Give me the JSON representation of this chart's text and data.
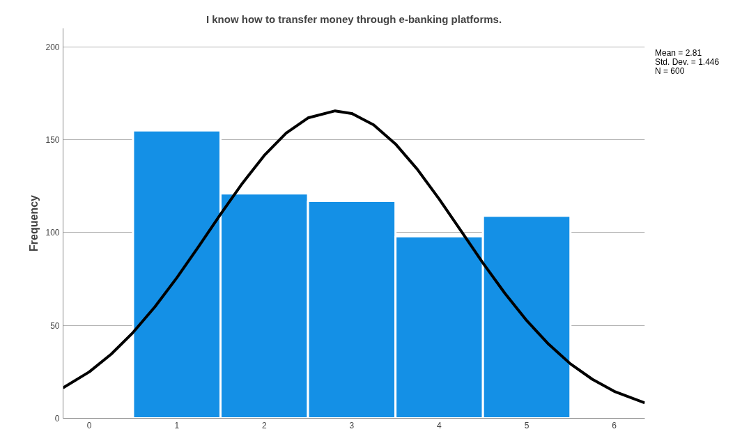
{
  "chart_data": {
    "type": "histogram",
    "title": "I know how to transfer money through e-banking platforms.",
    "ylabel": "Frequency",
    "bins": [
      0.5,
      1.5,
      2.5,
      3.5,
      4.5,
      5.5
    ],
    "values": [
      155,
      121,
      117,
      98,
      109
    ],
    "color": "#1490e6",
    "series": [
      {
        "type": "line",
        "color": "#000000",
        "x": [
          -0.3,
          0,
          0.25,
          0.5,
          0.75,
          1,
          1.25,
          1.5,
          1.75,
          2,
          2.25,
          2.5,
          2.81,
          3,
          3.25,
          3.5,
          3.75,
          4,
          4.25,
          4.5,
          4.75,
          5,
          5.25,
          5.5,
          5.75,
          6,
          6.35
        ],
        "values": [
          16.4,
          25.0,
          34.5,
          46.2,
          60.0,
          75.6,
          92.5,
          109.8,
          126.5,
          141.5,
          153.5,
          161.7,
          165.5,
          164.1,
          158.0,
          147.7,
          134.0,
          118.0,
          100.8,
          83.6,
          67.3,
          52.6,
          39.9,
          29.3,
          21.0,
          14.5,
          8.3
        ]
      }
    ],
    "xlim": [
      -0.3,
      6.35
    ],
    "xticks": [
      0,
      1,
      2,
      3,
      4,
      5,
      6
    ],
    "ylim": [
      0,
      210
    ],
    "yticks": [
      0,
      50,
      100,
      150,
      200
    ],
    "grid": "y",
    "annotations": [
      "Mean = 2.81",
      "Std. Dev. = 1.446",
      "N = 600"
    ]
  }
}
